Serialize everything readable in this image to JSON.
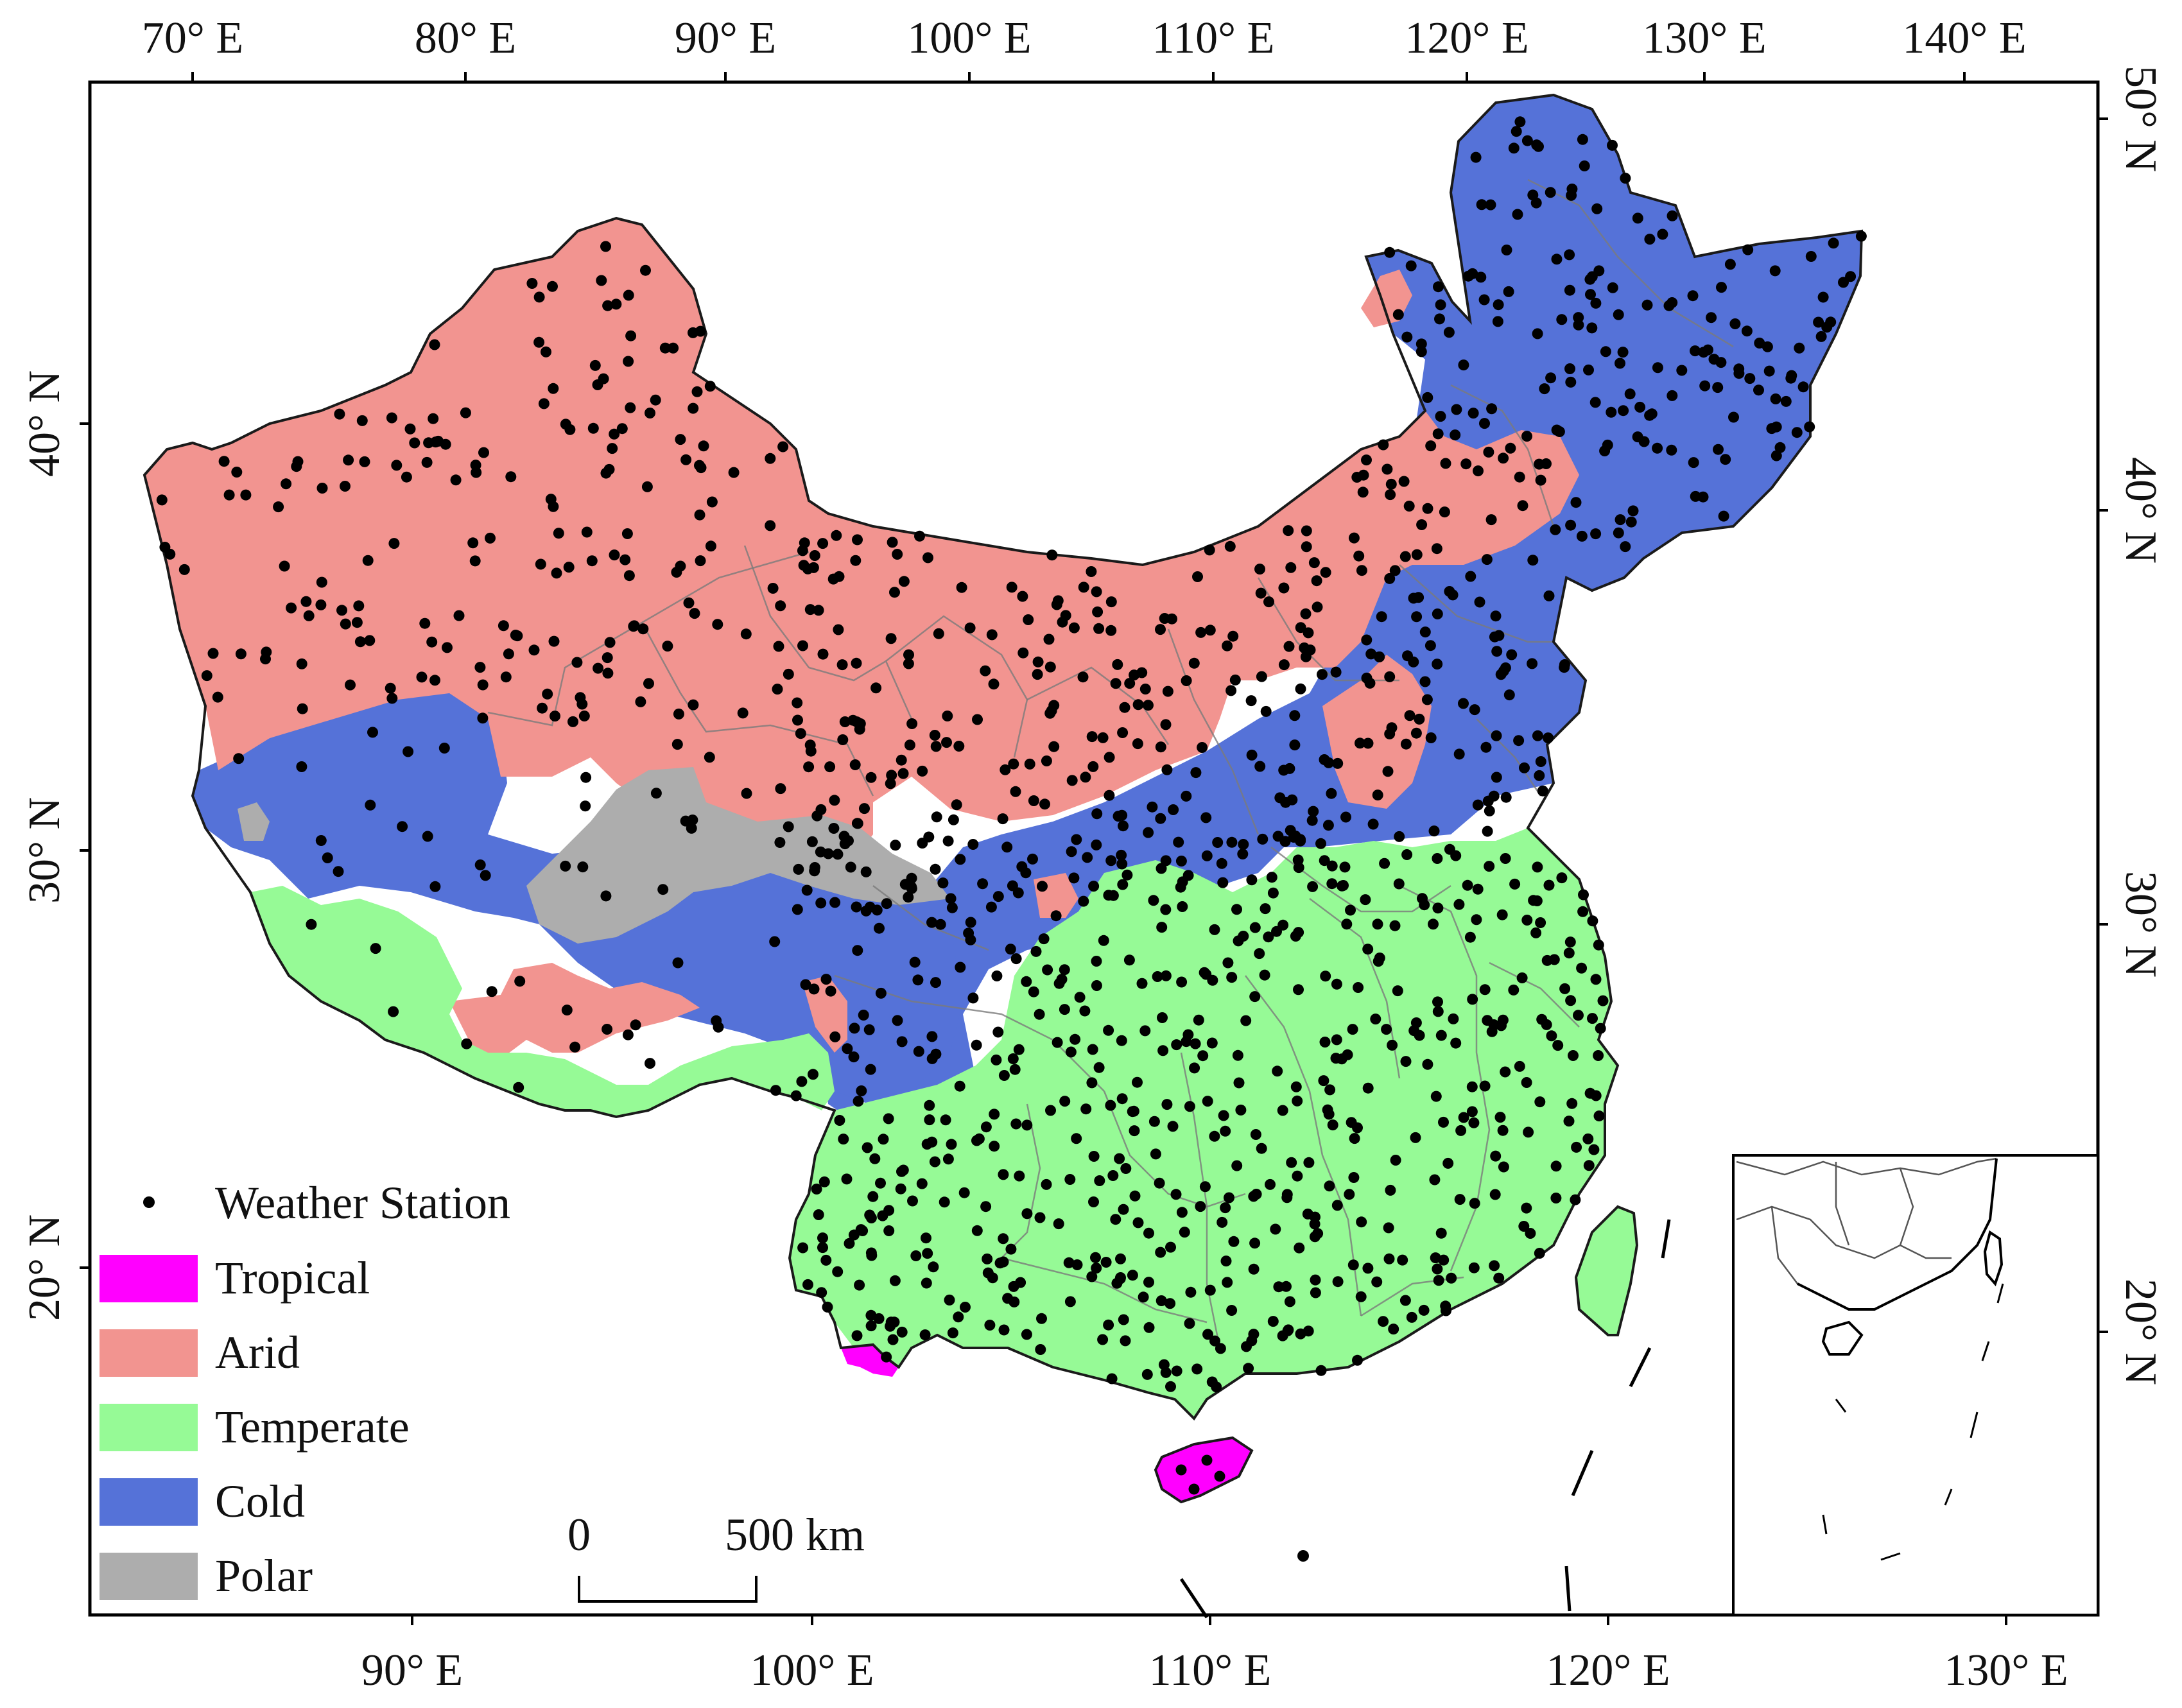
{
  "map": {
    "top_axis_ticks": [
      "70° E",
      "80° E",
      "90° E",
      "100° E",
      "110° E",
      "120° E",
      "130° E",
      "140° E"
    ],
    "bottom_axis_ticks": [
      "90° E",
      "100° E",
      "110° E",
      "120° E",
      "130° E"
    ],
    "left_axis_ticks": [
      "40° N",
      "30° N",
      "20° N"
    ],
    "right_axis_ticks": [
      "50° N",
      "40° N",
      "30° N",
      "20° N"
    ]
  },
  "legend": {
    "station_label": "Weather Station",
    "classes": [
      {
        "label": "Tropical",
        "color": "#ff00ff"
      },
      {
        "label": "Arid",
        "color": "#f29490"
      },
      {
        "label": "Temperate",
        "color": "#96fa96"
      },
      {
        "label": "Cold",
        "color": "#5572d8"
      },
      {
        "label": "Polar",
        "color": "#adadad"
      }
    ]
  },
  "scale_bar": {
    "start_label": "0",
    "end_label": "500 km"
  },
  "colors": {
    "station": "#000000",
    "border": "#000000"
  }
}
